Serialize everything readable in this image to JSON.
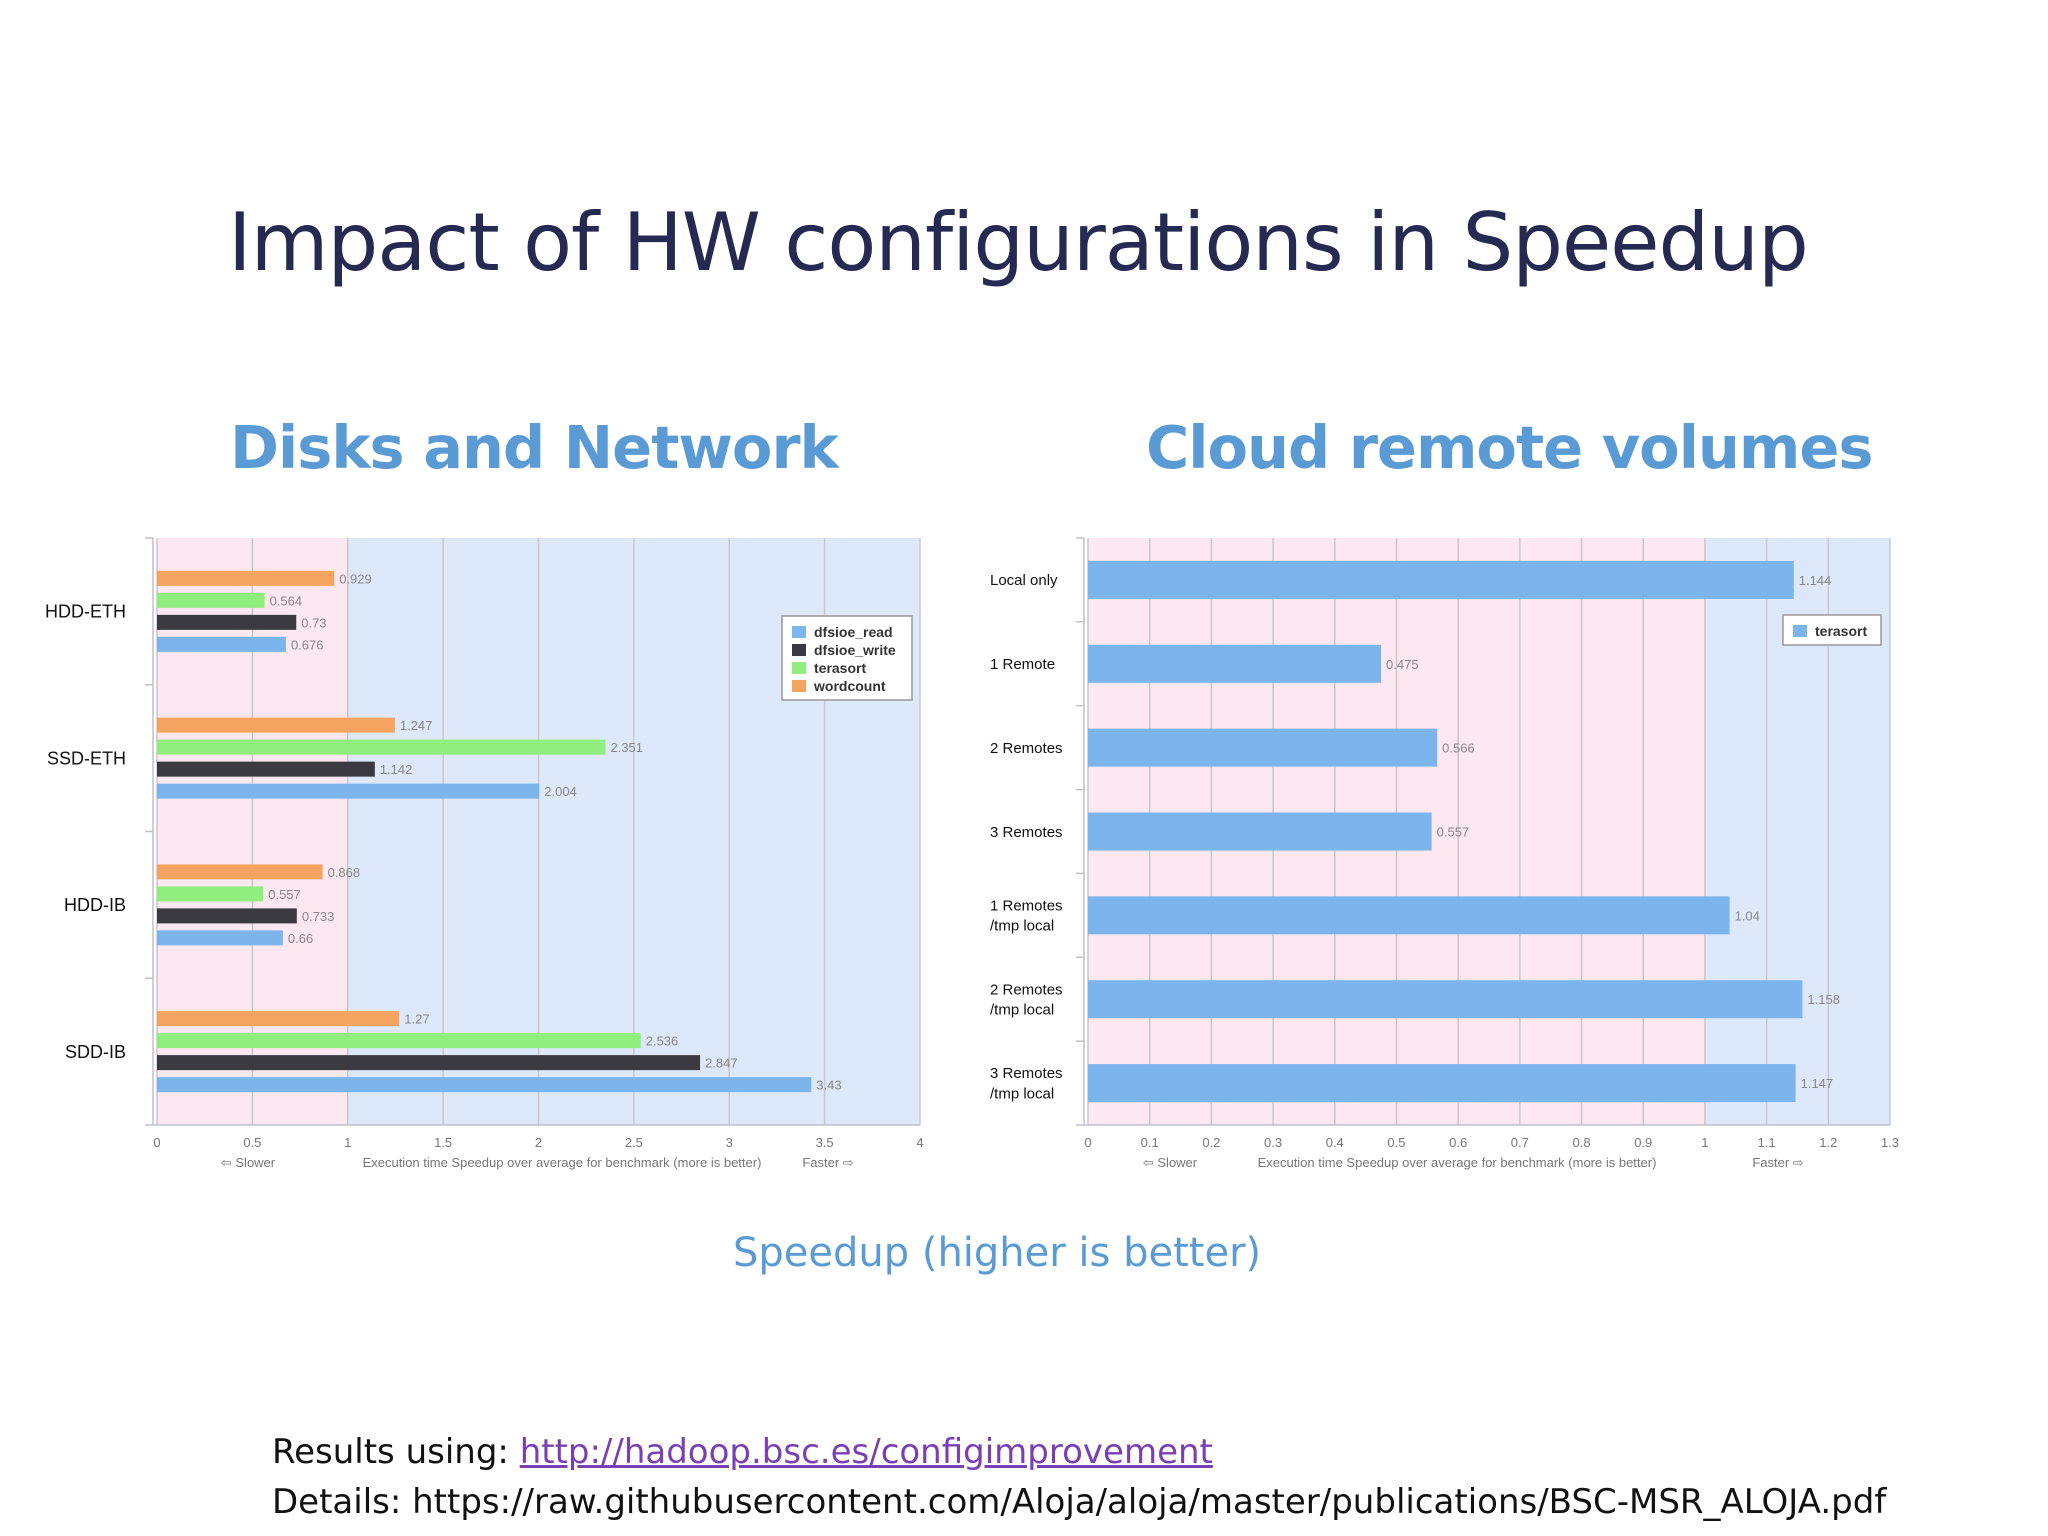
{
  "slide": {
    "title": "Impact of HW configurations in Speedup",
    "left_heading": "Disks and Network",
    "right_heading": "Cloud remote volumes",
    "caption": "Speedup (higher is better)",
    "results_label": "Results using: ",
    "results_link": "http://hadoop.bsc.es/configimprovement",
    "details_text": "Details: https://raw.githubusercontent.com/Aloja/aloja/master/publications/BSC-MSR_ALOJA.pdf"
  },
  "chart_data": [
    {
      "type": "bar",
      "orientation": "horizontal",
      "categories": [
        "HDD-ETH",
        "SSD-ETH",
        "HDD-IB",
        "SDD-IB"
      ],
      "series": [
        {
          "name": "wordcount",
          "color": "#f4a460",
          "values": [
            0.929,
            1.247,
            0.868,
            1.27
          ]
        },
        {
          "name": "terasort",
          "color": "#90ee7e",
          "values": [
            0.564,
            2.351,
            0.557,
            2.536
          ]
        },
        {
          "name": "dfsioe_write",
          "color": "#3a3a40",
          "values": [
            0.73,
            1.142,
            0.733,
            2.847
          ]
        },
        {
          "name": "dfsioe_read",
          "color": "#7cb5ec",
          "values": [
            0.676,
            2.004,
            0.66,
            3.43
          ]
        }
      ],
      "value_labels": [
        [
          "0.929",
          "0.564",
          "0.73",
          "0.676"
        ],
        [
          "1.247",
          "2.351",
          "1.142",
          "2.004"
        ],
        [
          "0.868",
          "0.557",
          "0.733",
          "0.66"
        ],
        [
          "1.27",
          "2.536",
          "2.847",
          "3.43"
        ]
      ],
      "legend": [
        "dfsioe_read",
        "dfsioe_write",
        "terasort",
        "wordcount"
      ],
      "legend_placement": "top-right",
      "xlim": [
        0,
        4
      ],
      "x_ticks": [
        "0",
        "0.5",
        "1",
        "1.5",
        "2",
        "2.5",
        "3",
        "3.5",
        "4"
      ],
      "slower_label": "⇦ Slower",
      "faster_label": "Faster ⇨",
      "xlabel": "Execution time Speedup over average for benchmark (more is better)",
      "band_split": 1,
      "slower_band_color": "#fde7f0",
      "faster_band_color": "#dde9fb",
      "grid": true
    },
    {
      "type": "bar",
      "orientation": "horizontal",
      "categories": [
        "Local only",
        "1 Remote",
        "2 Remotes",
        "3 Remotes",
        "1 Remotes\n/tmp local",
        "2 Remotes\n/tmp local",
        "3 Remotes\n/tmp local"
      ],
      "series": [
        {
          "name": "terasort",
          "color": "#7cb5ec",
          "values": [
            1.144,
            0.475,
            0.566,
            0.557,
            1.04,
            1.158,
            1.147
          ]
        }
      ],
      "value_labels": [
        "1.144",
        "0.475",
        "0.566",
        "0.557",
        "1.04",
        "1.158",
        "1.147"
      ],
      "legend": [
        "terasort"
      ],
      "legend_placement": "top-right",
      "xlim": [
        0,
        1.3
      ],
      "x_ticks": [
        "0",
        "0.1",
        "0.2",
        "0.3",
        "0.4",
        "0.5",
        "0.6",
        "0.7",
        "0.8",
        "0.9",
        "1",
        "1.1",
        "1.2",
        "1.3"
      ],
      "slower_label": "⇦ Slower",
      "faster_label": "Faster ⇨",
      "xlabel": "Execution time Speedup over average for benchmark (more is better)",
      "band_split": 1,
      "slower_band_color": "#fde7f0",
      "faster_band_color": "#dde9fb",
      "grid": true
    }
  ]
}
